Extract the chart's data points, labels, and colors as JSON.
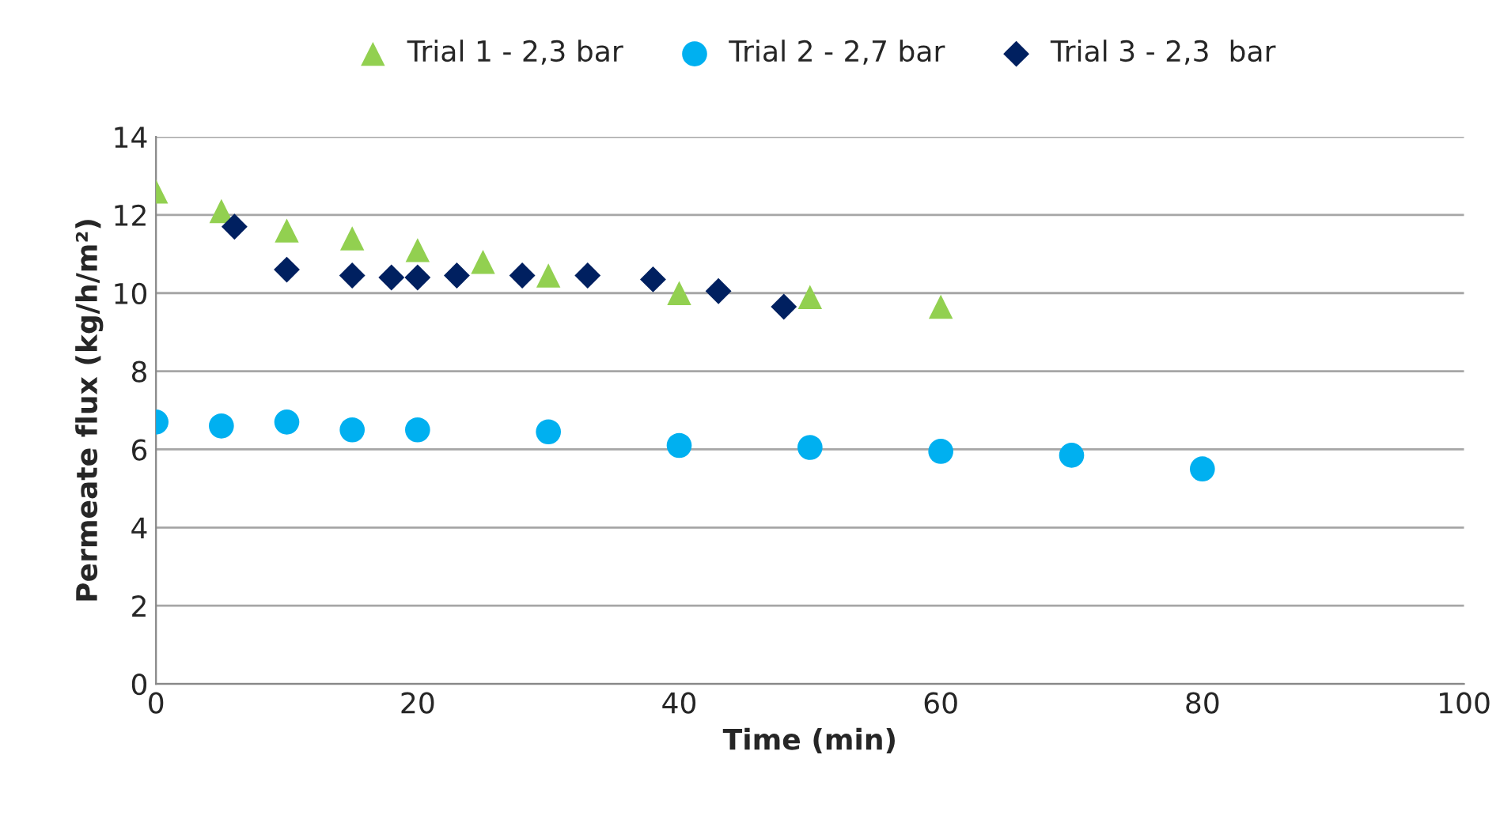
{
  "chart_data": {
    "type": "scatter",
    "xlabel": "Time (min)",
    "ylabel": "Permeate flux (kg/h/m²)",
    "xlim": [
      0,
      100
    ],
    "xticks": [
      0,
      20,
      40,
      60,
      80,
      100
    ],
    "ylim": [
      0,
      14
    ],
    "yticks": [
      0,
      2,
      4,
      6,
      8,
      10,
      12,
      14
    ],
    "grid": "y",
    "legend": "top",
    "series": [
      {
        "name": "Trial 1 - 2,3 bar",
        "color": "#92d050",
        "marker": "triangle",
        "x": [
          0,
          5,
          10,
          15,
          20,
          25,
          30,
          40,
          50,
          60
        ],
        "values": [
          12.6,
          12.1,
          11.6,
          11.4,
          11.1,
          10.8,
          10.45,
          10.0,
          9.9,
          9.65
        ]
      },
      {
        "name": "Trial 2 - 2,7 bar",
        "color": "#00b0f0",
        "marker": "circle",
        "x": [
          0,
          5,
          10,
          15,
          20,
          30,
          40,
          50,
          60,
          70,
          80
        ],
        "values": [
          6.7,
          6.6,
          6.7,
          6.5,
          6.5,
          6.45,
          6.1,
          6.05,
          5.95,
          5.85,
          5.5
        ]
      },
      {
        "name": "Trial 3 - 2,3  bar",
        "color": "#002060",
        "marker": "diamond",
        "x": [
          6,
          10,
          15,
          18,
          20,
          23,
          28,
          33,
          38,
          43,
          48
        ],
        "values": [
          11.7,
          10.6,
          10.45,
          10.4,
          10.4,
          10.45,
          10.45,
          10.45,
          10.35,
          10.05,
          9.65
        ]
      }
    ]
  }
}
